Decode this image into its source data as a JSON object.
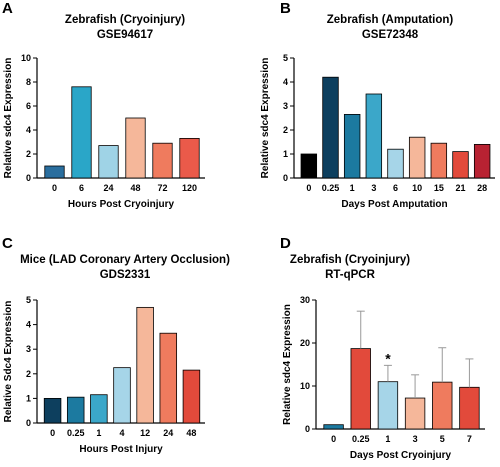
{
  "chart_data": [
    {
      "panel": "A",
      "type": "bar",
      "title": "Zebrafish (Cryoinjury)",
      "subtitle": "GSE94617",
      "xlabel": "Hours Post Cryoinjury",
      "ylabel": "Relative sdc4 Expression",
      "ylim": [
        0,
        10
      ],
      "yticks": [
        "0",
        "2",
        "4",
        "6",
        "8",
        "10"
      ],
      "categories": [
        "0",
        "6",
        "24",
        "48",
        "72",
        "120"
      ],
      "values": [
        1.0,
        7.6,
        2.7,
        5.0,
        2.9,
        3.3
      ],
      "colors": [
        "#2a6e9e",
        "#2aa6c8",
        "#9fd3e6",
        "#f5b79a",
        "#ef7b5e",
        "#ea5a4a"
      ]
    },
    {
      "panel": "B",
      "type": "bar",
      "title": "Zebrafish (Amputation)",
      "subtitle": "GSE72348",
      "xlabel": "Days Post Amputation",
      "ylabel": "Relative sdc4 Expression",
      "ylim": [
        0,
        5
      ],
      "yticks": [
        "0",
        "1",
        "2",
        "3",
        "4",
        "5"
      ],
      "categories": [
        "0",
        "0.25",
        "1",
        "3",
        "6",
        "10",
        "15",
        "21",
        "28"
      ],
      "values": [
        1.0,
        4.2,
        2.65,
        3.5,
        1.2,
        1.7,
        1.45,
        1.1,
        1.4
      ],
      "colors": [
        "#000000",
        "#0d3f5e",
        "#1c7aa0",
        "#3ba7c9",
        "#a6d5e8",
        "#f5b79a",
        "#ef7b5e",
        "#e24a3b",
        "#b82232"
      ]
    },
    {
      "panel": "C",
      "type": "bar",
      "title": "Mice (LAD Coronary Artery Occlusion)",
      "subtitle": "GDS2331",
      "xlabel": "Hours Post Injury",
      "ylabel": "Relative Sdc4 Expression",
      "ylim": [
        0,
        5
      ],
      "yticks": [
        "0",
        "1",
        "2",
        "3",
        "4",
        "5"
      ],
      "categories": [
        "0",
        "0.25",
        "1",
        "4",
        "12",
        "24",
        "48"
      ],
      "values": [
        1.0,
        1.05,
        1.15,
        2.25,
        4.7,
        3.65,
        2.15
      ],
      "colors": [
        "#0d3f5e",
        "#1c7aa0",
        "#3ba7c9",
        "#a6d5e8",
        "#f5b79a",
        "#ef7b5e",
        "#e24a3b"
      ]
    },
    {
      "panel": "D",
      "type": "bar",
      "title": "Zebrafish (Cryoinjury)",
      "subtitle": "RT-qPCR",
      "xlabel": "Days Post Cryoinjury",
      "ylabel": "Relative sdc4 Expression",
      "ylim": [
        0,
        30
      ],
      "yticks": [
        "0",
        "10",
        "20",
        "30"
      ],
      "categories": [
        "0",
        "0.25",
        "1",
        "3",
        "5",
        "7"
      ],
      "values": [
        1.0,
        18.7,
        11.0,
        7.2,
        10.9,
        9.7
      ],
      "errors": [
        0,
        8.7,
        3.8,
        5.4,
        8.0,
        6.6
      ],
      "annotations": [
        {
          "category": "1",
          "text": "*"
        }
      ],
      "colors": [
        "#1c7aa0",
        "#e24a3b",
        "#a6d5e8",
        "#f5b79a",
        "#ef7b5e",
        "#e24a3b"
      ]
    }
  ]
}
